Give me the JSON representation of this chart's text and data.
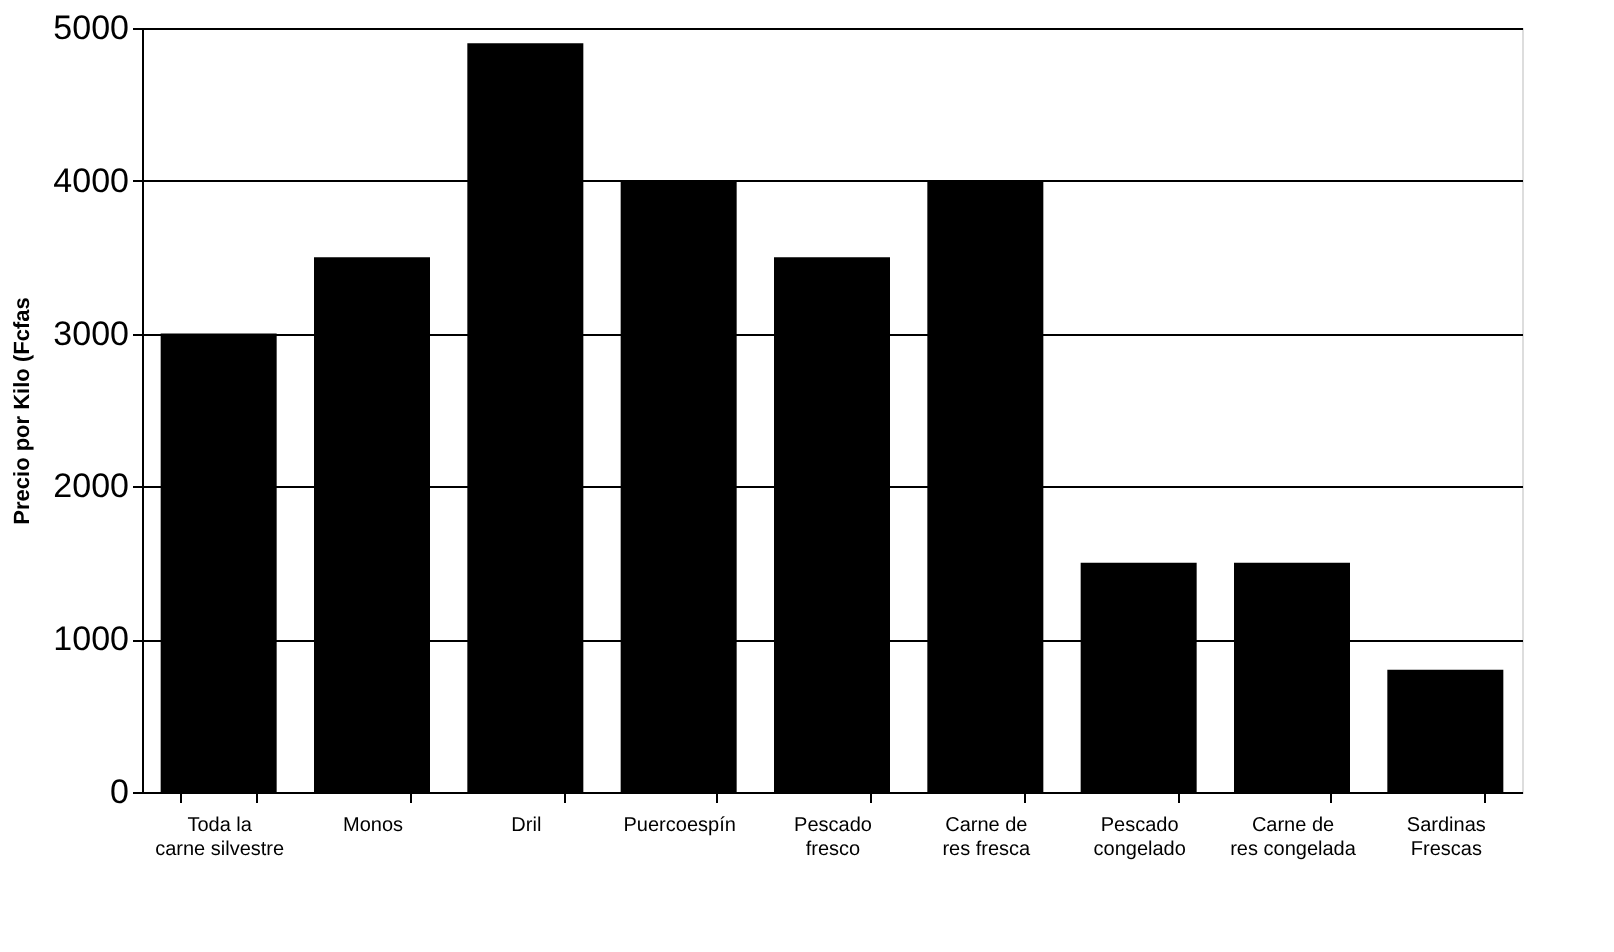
{
  "chart_data": {
    "type": "bar",
    "ylabel": "Precio por Kilo (Fcfas",
    "categories": [
      "Toda la\ncarne silvestre",
      "Monos",
      "Dril",
      "Puercoespín",
      "Pescado\nfresco",
      "Carne de\nres fresca",
      "Pescado\ncongelado",
      "Carne de\nres congelada",
      "Sardinas\nFrescas"
    ],
    "values": [
      3000,
      3500,
      4900,
      4000,
      3500,
      4000,
      1500,
      1500,
      800
    ],
    "color": "#000000",
    "ylim": [
      0,
      5000
    ],
    "yticks": [
      0,
      1000,
      2000,
      3000,
      4000,
      5000
    ],
    "grid": "y"
  }
}
